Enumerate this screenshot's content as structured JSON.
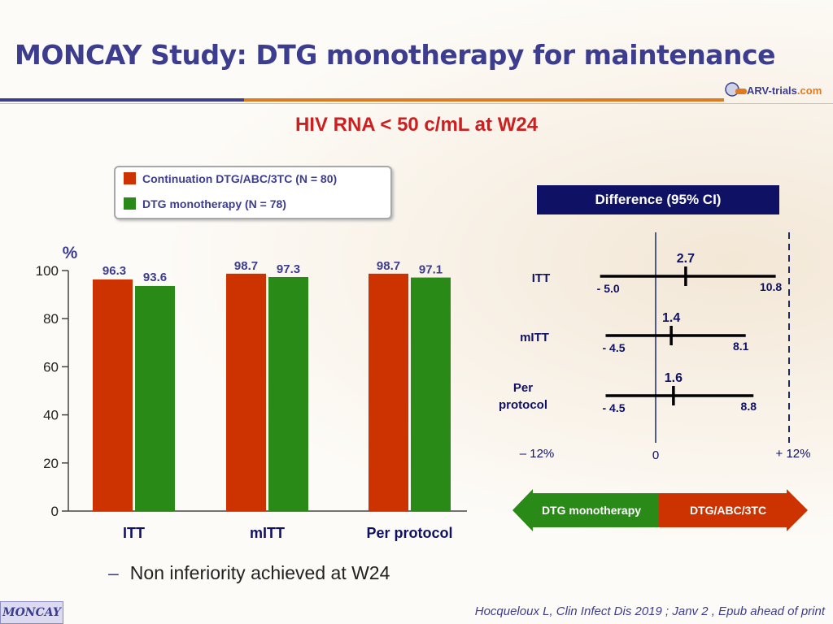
{
  "title": "MONCAY Study: DTG monotherapy for maintenance",
  "logo": {
    "main": "ARV-trials",
    "suffix": ".com"
  },
  "subtitle": "HIV RNA < 50 c/mL at W24",
  "legend": [
    {
      "label": "Continuation DTG/ABC/3TC (N = 80)",
      "color": "#cc3300"
    },
    {
      "label": "DTG monotherapy (N = 78)",
      "color": "#2a8a18"
    }
  ],
  "difference_header": "Difference  (95% CI)",
  "chart_data": [
    {
      "type": "bar",
      "ylabel": "%",
      "ylim": [
        0,
        100
      ],
      "yticks": [
        0,
        20,
        40,
        60,
        80,
        100
      ],
      "categories": [
        "ITT",
        "mITT",
        "Per protocol"
      ],
      "series": [
        {
          "name": "Continuation DTG/ABC/3TC (N = 80)",
          "color": "#cc3300",
          "values": [
            96.3,
            98.7,
            98.7
          ],
          "labels": [
            "96.3",
            "98.7",
            "98.7"
          ]
        },
        {
          "name": "DTG monotherapy (N = 78)",
          "color": "#2a8a18",
          "values": [
            93.6,
            97.3,
            97.1
          ],
          "labels": [
            "93.6",
            "97.3",
            "97.1"
          ]
        }
      ]
    },
    {
      "type": "forest",
      "title": "Difference  (95% CI)",
      "xlim": [
        -12,
        12
      ],
      "x_ticks": [
        "– 12%",
        "0",
        "+ 12%"
      ],
      "margin_line": 12,
      "rows": [
        {
          "label": "ITT",
          "estimate": 2.7,
          "lower": -5.0,
          "upper": 10.8,
          "est_label": "2.7",
          "lower_label": "- 5.0",
          "upper_label": "10.8"
        },
        {
          "label": "mITT",
          "estimate": 1.4,
          "lower": -4.5,
          "upper": 8.1,
          "est_label": "1.4",
          "lower_label": "- 4.5",
          "upper_label": "8.1"
        },
        {
          "label": "Per protocol",
          "label_lines": [
            "Per",
            "protocol"
          ],
          "estimate": 1.6,
          "lower": -4.5,
          "upper": 8.8,
          "est_label": "1.6",
          "lower_label": "- 4.5",
          "upper_label": "8.8"
        }
      ],
      "arrow_left": "DTG monotherapy",
      "arrow_right": "DTG/ABC/3TC",
      "arrow_left_color": "#2a8a18",
      "arrow_right_color": "#cc3300"
    }
  ],
  "bullet": {
    "dash": "–",
    "text": "Non inferiority achieved at W24"
  },
  "citation": "Hocqueloux L, Clin Infect Dis 2019 ; Janv 2 , Epub ahead of print",
  "tag": "MONCAY"
}
